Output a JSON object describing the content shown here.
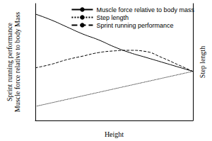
{
  "chart_data": {
    "type": "line",
    "x_label": "Height",
    "y_label": [
      "Sprint running performance",
      "Muscle force relative to body Mass"
    ],
    "y2_label": "Step length",
    "x": [
      0,
      1,
      2,
      3,
      4,
      5,
      6,
      7,
      8,
      9,
      10
    ],
    "series": [
      {
        "name": "Muscle force relative to body mass",
        "color": "#000000",
        "line_style": "solid",
        "values": [
          9.1,
          8.6,
          8.0,
          7.4,
          6.9,
          6.3,
          5.8,
          5.4,
          5.0,
          4.6,
          4.2
        ]
      },
      {
        "name": "Step length",
        "color": "#000000",
        "line_style": "dotted",
        "axis": "y2",
        "values": [
          1.2,
          1.5,
          1.8,
          2.1,
          2.4,
          2.7,
          3.0,
          3.3,
          3.6,
          3.9,
          4.2
        ]
      },
      {
        "name": "Sprint running performance",
        "color": "#000000",
        "line_style": "dashed",
        "values": [
          4.5,
          4.8,
          5.2,
          5.5,
          5.8,
          5.95,
          6.0,
          5.9,
          5.4,
          4.8,
          4.2
        ]
      }
    ],
    "xlim": [
      0,
      10
    ],
    "ylim": [
      0,
      10
    ],
    "y2lim": [
      0,
      10
    ],
    "tick_labels": false,
    "grid": false,
    "legend": "upper right"
  }
}
